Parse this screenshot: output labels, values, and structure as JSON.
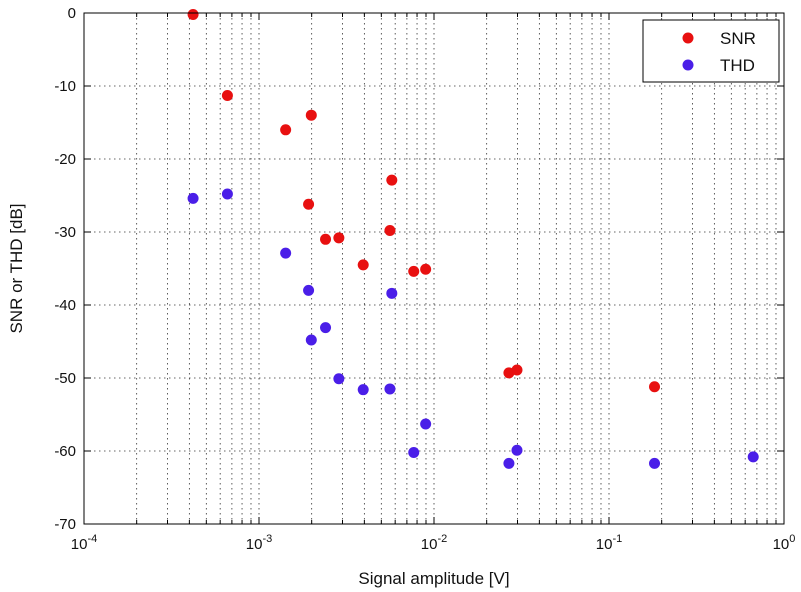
{
  "chart_data": {
    "type": "scatter",
    "xlabel": "Signal amplitude [V]",
    "ylabel": "SNR or THD [dB]",
    "xscale": "log",
    "xlim": [
      0.0001,
      1
    ],
    "ylim": [
      -70,
      0
    ],
    "x_ticks": [
      {
        "value": 0.0001,
        "base": "10",
        "exp": "-4"
      },
      {
        "value": 0.001,
        "base": "10",
        "exp": "-3"
      },
      {
        "value": 0.01,
        "base": "10",
        "exp": "-2"
      },
      {
        "value": 0.1,
        "base": "10",
        "exp": "-1"
      },
      {
        "value": 1,
        "base": "10",
        "exp": "0"
      }
    ],
    "y_ticks": [
      0,
      -10,
      -20,
      -30,
      -40,
      -50,
      -60,
      -70
    ],
    "grid": true,
    "legend_position": "top-right",
    "series": [
      {
        "name": "SNR",
        "color": "#e81010",
        "points": [
          {
            "x": 0.00042,
            "y": -0.2
          },
          {
            "x": 0.00066,
            "y": -11.3
          },
          {
            "x": 0.00142,
            "y": -16.0
          },
          {
            "x": 0.00199,
            "y": -14.0
          },
          {
            "x": 0.00192,
            "y": -26.2
          },
          {
            "x": 0.0024,
            "y": -31.0
          },
          {
            "x": 0.00286,
            "y": -30.8
          },
          {
            "x": 0.00394,
            "y": -34.5
          },
          {
            "x": 0.00574,
            "y": -22.9
          },
          {
            "x": 0.0056,
            "y": -29.8
          },
          {
            "x": 0.00766,
            "y": -35.4
          },
          {
            "x": 0.00896,
            "y": -35.1
          },
          {
            "x": 0.0268,
            "y": -49.3
          },
          {
            "x": 0.0298,
            "y": -48.9
          },
          {
            "x": 0.182,
            "y": -51.2
          }
        ]
      },
      {
        "name": "THD",
        "color": "#4a1ee8",
        "points": [
          {
            "x": 0.00042,
            "y": -25.4
          },
          {
            "x": 0.00066,
            "y": -24.8
          },
          {
            "x": 0.00142,
            "y": -32.9
          },
          {
            "x": 0.00192,
            "y": -38.0
          },
          {
            "x": 0.00199,
            "y": -44.8
          },
          {
            "x": 0.0024,
            "y": -43.1
          },
          {
            "x": 0.00286,
            "y": -50.1
          },
          {
            "x": 0.00394,
            "y": -51.6
          },
          {
            "x": 0.00574,
            "y": -38.4
          },
          {
            "x": 0.0056,
            "y": -51.5
          },
          {
            "x": 0.00766,
            "y": -60.2
          },
          {
            "x": 0.00896,
            "y": -56.3
          },
          {
            "x": 0.0268,
            "y": -61.7
          },
          {
            "x": 0.0298,
            "y": -59.9
          },
          {
            "x": 0.182,
            "y": -61.7
          },
          {
            "x": 0.667,
            "y": -60.8
          }
        ]
      }
    ]
  }
}
